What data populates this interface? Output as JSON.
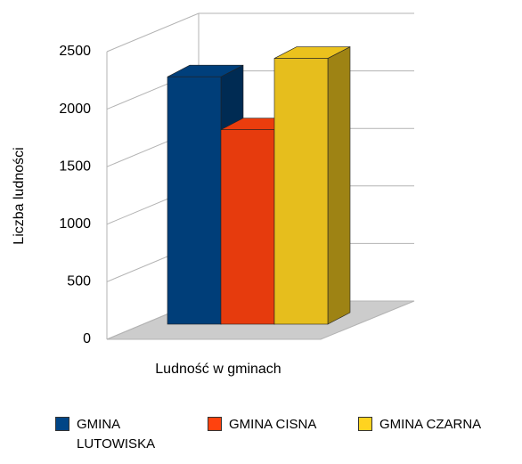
{
  "chart_data": {
    "type": "bar3d",
    "xlabel": "Ludność w gminach",
    "ylabel": "Liczba ludności",
    "ylim": [
      0,
      2500
    ],
    "yticks": [
      0,
      500,
      1000,
      1500,
      2000,
      2500
    ],
    "grid": true,
    "legend": "bottom",
    "series": [
      {
        "name": "GMINA LUTOWISKA",
        "color": "#004586",
        "values": [
          2150
        ]
      },
      {
        "name": "GMINA CISNA",
        "color": "#ff420e",
        "values": [
          1690
        ]
      },
      {
        "name": "GMINA CZARNA",
        "color": "#ffd320",
        "values": [
          2310
        ]
      }
    ]
  }
}
